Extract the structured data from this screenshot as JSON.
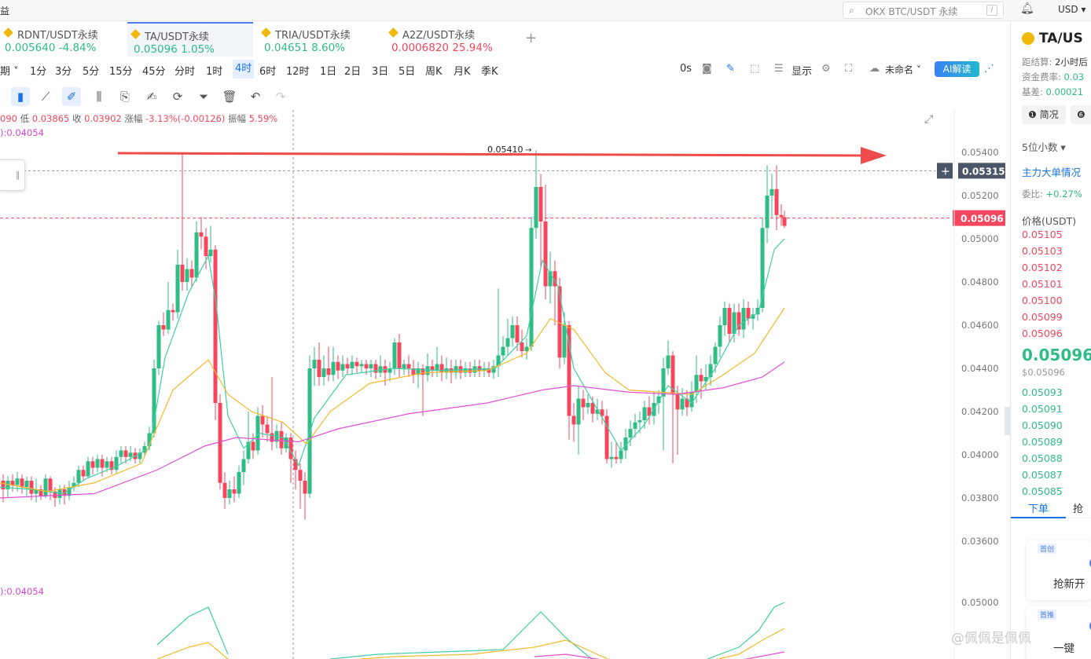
{
  "topbar": {
    "left_label": "益",
    "search_placeholder": "OKX BTC/USDT 永续",
    "search_shortcut": "/",
    "currency": "USD"
  },
  "tabs": [
    {
      "name": "RDNT/USDT永续",
      "price": "0.005640",
      "change": "-4.84%",
      "color": "green",
      "active": false
    },
    {
      "name": "TA/USDT永续",
      "price": "0.05096",
      "change": "1.05%",
      "color": "green",
      "active": true
    },
    {
      "name": "TRIA/USDT永续",
      "price": "0.04651",
      "change": "8.60%",
      "color": "green",
      "active": false
    },
    {
      "name": "A2Z/USDT永续",
      "price": "0.0006820",
      "change": "25.94%",
      "color": "red",
      "active": false
    }
  ],
  "add_tab": "+",
  "timeframes": [
    "期",
    "1分",
    "3分",
    "5分",
    "15分",
    "45分",
    "分时",
    "1时",
    "4时",
    "6时",
    "12时",
    "1日",
    "2日",
    "3日",
    "5日",
    "周K",
    "月K",
    "季K"
  ],
  "active_timeframe": "4时",
  "toolbar_right": {
    "seconds": "0s",
    "display": "显示",
    "unnamed": "未命名",
    "ai": "AI解读"
  },
  "info_row": {
    "high": "090",
    "low_label": "低",
    "low": "0.03865",
    "close_label": "收",
    "close": "0.03902",
    "chg_label": "涨幅",
    "chg": "-3.13%(-0.00126)",
    "amp_label": "振幅",
    "amp": "5.59%"
  },
  "ma_text": "):0.04054",
  "ma_text2": "):0.04054",
  "chart": {
    "price_ticks": [
      "0.05400",
      "0.05200",
      "0.05000",
      "0.04800",
      "0.04600",
      "0.04400",
      "0.04200",
      "0.04000",
      "0.03800",
      "0.03600"
    ],
    "sub_ticks": [
      "0.05000"
    ],
    "crosshair_price": "0.05315",
    "last_price_label": "0.05096",
    "high_marker": "0.05410",
    "colors": {
      "up": "#2ebd85",
      "down": "#f6465d",
      "ma_fast": "#3fcfa5",
      "ma_mid": "#f5b92a",
      "ma_slow": "#e44fd4",
      "arrow": "#ee4b4b"
    }
  },
  "right_panel": {
    "title": "TA/US",
    "settle_label": "距结算:",
    "settle": "2小时后",
    "funding_label": "资金费率:",
    "funding": "0.03",
    "basis_label": "基差:",
    "basis": "0.00021",
    "btn1": "简况",
    "decimals": "5位小数",
    "bigorder": "主力大单情况",
    "ratio_label": "委比:",
    "ratio": "+0.27%",
    "price_header": "价格(USDT)",
    "asks": [
      "0.05105",
      "0.05103",
      "0.05102",
      "0.05101",
      "0.05100",
      "0.05099",
      "0.05096"
    ],
    "last": "0.05096",
    "last_usd": "$0.05096",
    "bids": [
      "0.05093",
      "0.05091",
      "0.05090",
      "0.05089",
      "0.05088",
      "0.05087",
      "0.05085"
    ],
    "order_tab1": "下单",
    "order_tab2": "抢",
    "promo1_tag": "首创",
    "promo1_text": "抢新开",
    "promo2_tag": "首推",
    "promo2_text": "一键"
  },
  "watermark": "@佩佩是佩佩"
}
